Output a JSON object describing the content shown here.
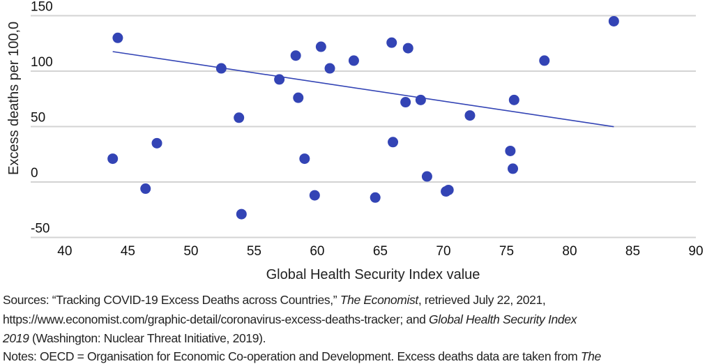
{
  "chart_data": {
    "type": "scatter",
    "xlabel": "Global Health Security Index value",
    "ylabel": "Excess deaths per 100,0",
    "xlim": [
      37.3,
      90
    ],
    "ylim": [
      -50,
      150
    ],
    "xticks": [
      "40",
      "45",
      "50",
      "55",
      "60",
      "65",
      "70",
      "75",
      "80",
      "85",
      "90"
    ],
    "yticks": [
      "150",
      "100",
      "50",
      "0",
      "-50"
    ],
    "grid": "horizontal",
    "point_color": "#3344b5",
    "trendline_color": "#3344b5",
    "gridline_color": "#d3d3d3",
    "points": [
      {
        "x": 44.2,
        "y": 130
      },
      {
        "x": 43.8,
        "y": 21
      },
      {
        "x": 46.4,
        "y": -6
      },
      {
        "x": 47.3,
        "y": 35
      },
      {
        "x": 52.4,
        "y": 102.5
      },
      {
        "x": 53.8,
        "y": 58
      },
      {
        "x": 54.0,
        "y": -29
      },
      {
        "x": 57.0,
        "y": 92.5
      },
      {
        "x": 58.3,
        "y": 114
      },
      {
        "x": 58.5,
        "y": 76
      },
      {
        "x": 59.0,
        "y": 21
      },
      {
        "x": 59.8,
        "y": -12
      },
      {
        "x": 60.3,
        "y": 122
      },
      {
        "x": 61.0,
        "y": 102.5
      },
      {
        "x": 62.9,
        "y": 109.5
      },
      {
        "x": 65.9,
        "y": 125.7
      },
      {
        "x": 67.2,
        "y": 120.7
      },
      {
        "x": 67.0,
        "y": 72
      },
      {
        "x": 68.2,
        "y": 74
      },
      {
        "x": 66.0,
        "y": 36
      },
      {
        "x": 68.7,
        "y": 5
      },
      {
        "x": 64.6,
        "y": -14
      },
      {
        "x": 70.2,
        "y": -8.5
      },
      {
        "x": 70.4,
        "y": -7.2
      },
      {
        "x": 72.1,
        "y": 60
      },
      {
        "x": 75.6,
        "y": 74
      },
      {
        "x": 75.3,
        "y": 28
      },
      {
        "x": 75.5,
        "y": 12
      },
      {
        "x": 78.0,
        "y": 109.5
      },
      {
        "x": 83.5,
        "y": 145
      }
    ],
    "trendline": {
      "x": [
        43.8,
        83.5
      ],
      "y": [
        117.6,
        49.9
      ]
    }
  },
  "notes": {
    "sources_1a": "Sources: “Tracking COVID-19 Excess Deaths across Countries,” ",
    "sources_1b": "The Economist",
    "sources_1c": ", retrieved July 22, 2021,",
    "sources_2a": "https://www.economist.com/graphic-detail/coronavirus-excess-deaths-tracker; and ",
    "sources_2b": "Global Health Security Index",
    "sources_3a": "2019",
    "sources_3b": " (Washington: Nuclear Threat Initiative, 2019).",
    "notes_a": "Notes: OECD = Organisation for Economic Co-operation and Development. Excess deaths data are taken from ",
    "notes_b": "The"
  }
}
